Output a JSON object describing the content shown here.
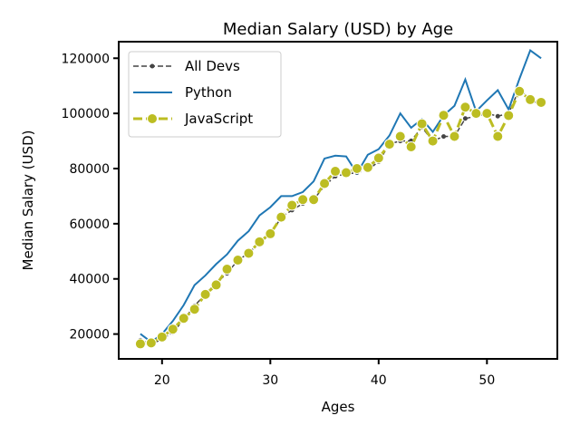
{
  "chart_data": {
    "type": "line",
    "title": "Median Salary (USD) by Age",
    "xlabel": "Ages",
    "ylabel": "Median Salary (USD)",
    "xlim": [
      16,
      56.5
    ],
    "ylim": [
      11000,
      126000
    ],
    "xticks": [
      20,
      30,
      40,
      50
    ],
    "yticks": [
      20000,
      40000,
      60000,
      80000,
      100000,
      120000
    ],
    "grid": false,
    "legend": "top-left",
    "x": [
      18,
      19,
      20,
      21,
      22,
      23,
      24,
      25,
      26,
      27,
      28,
      29,
      30,
      31,
      32,
      33,
      34,
      35,
      36,
      37,
      38,
      39,
      40,
      41,
      42,
      43,
      44,
      45,
      46,
      47,
      48,
      49,
      50,
      51,
      52,
      53,
      54,
      55
    ],
    "series": [
      {
        "name": "All Devs",
        "color": "#444444",
        "style": "dashed-dot-markers",
        "values": [
          17784,
          16500,
          18012,
          20628,
          25206,
          30252,
          34368,
          38496,
          42000,
          46752,
          49320,
          53200,
          56000,
          62316,
          64928,
          67317,
          68748,
          73752,
          77232,
          78000,
          78508,
          79536,
          82488,
          88935,
          90000,
          90056,
          95000,
          90000,
          91633,
          91660,
          98150,
          98964,
          100000,
          98988,
          100000,
          108923,
          105000,
          103117
        ]
      },
      {
        "name": "Python",
        "color": "#1f77b4",
        "style": "solid",
        "values": [
          20046,
          17100,
          20000,
          24744,
          30500,
          37732,
          41247,
          45372,
          48876,
          53850,
          57287,
          63016,
          65998,
          70003,
          70000,
          71496,
          75370,
          83640,
          84666,
          84392,
          78254,
          85000,
          87038,
          91991,
          100000,
          94796,
          97962,
          93302,
          99240,
          102736,
          112285,
          100771,
          104708,
          108423,
          101407,
          112542,
          122870,
          120000
        ]
      },
      {
        "name": "JavaScript",
        "color": "#bcbd22",
        "style": "dashed-circle-markers",
        "values": [
          16446,
          16791,
          18942,
          21780,
          25704,
          29000,
          34372,
          37810,
          43515,
          46823,
          49293,
          53437,
          56373,
          62375,
          66674,
          68745,
          68746,
          74583,
          79000,
          78508,
          79996,
          80403,
          83820,
          88833,
          91660,
          87892,
          96243,
          90000,
          99313,
          91660,
          102264,
          100000,
          100000,
          91660,
          99240,
          108000,
          105000,
          104000
        ]
      }
    ]
  }
}
